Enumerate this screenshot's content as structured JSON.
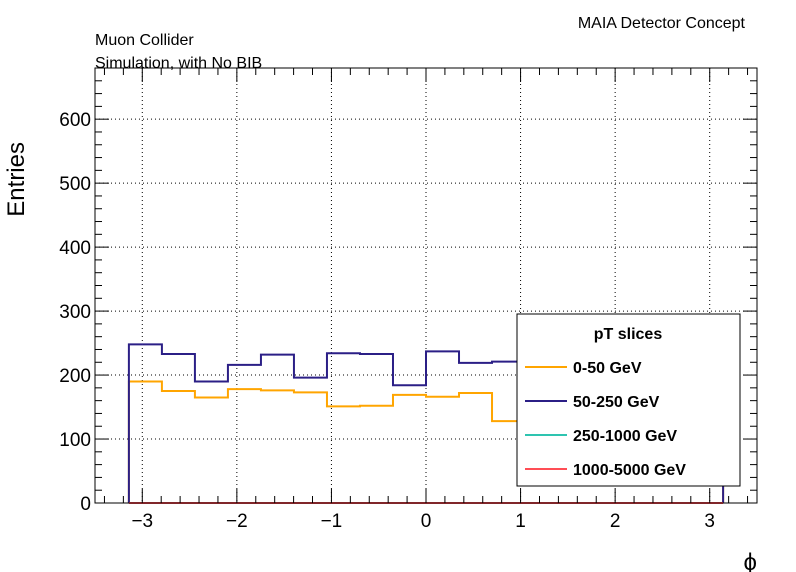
{
  "annotations": {
    "experiment": "MAIA Detector Concept",
    "line1": "Muon Collider",
    "line2": "Simulation, with No BIB"
  },
  "chart_data": {
    "type": "histogram",
    "title": "",
    "xlabel": "ϕ",
    "ylabel": "Entries",
    "xlim": [
      -3.5,
      3.5
    ],
    "ylim": [
      0,
      680
    ],
    "grid": true,
    "xticks": [
      -3,
      -2,
      -1,
      0,
      1,
      2,
      3
    ],
    "xtick_labels": [
      "−3",
      "−2",
      "−1",
      "0",
      "1",
      "2",
      "3"
    ],
    "yticks": [
      0,
      100,
      200,
      300,
      400,
      500,
      600
    ],
    "ytick_labels": [
      "0",
      "100",
      "200",
      "300",
      "400",
      "500",
      "600"
    ],
    "bin_edges": [
      -3.1416,
      -2.7925,
      -2.4435,
      -2.0944,
      -1.7453,
      -1.3963,
      -1.0472,
      -0.6981,
      -0.3491,
      0.0,
      0.3491,
      0.6981,
      1.0472,
      1.3963,
      1.7453,
      2.0944,
      2.4435,
      2.7925,
      3.1416
    ],
    "legend": {
      "title": "pT slices",
      "position": "bottom-right"
    },
    "series": [
      {
        "name": "0-50 GeV",
        "color": "#ffa500",
        "values": [
          190,
          175,
          165,
          178,
          176,
          173,
          151,
          152,
          169,
          166,
          172,
          128,
          128,
          128,
          128,
          128,
          128,
          128
        ]
      },
      {
        "name": "50-250 GeV",
        "color": "#2b1f86",
        "values": [
          248,
          233,
          190,
          216,
          232,
          196,
          234,
          233,
          184,
          237,
          219,
          221,
          221,
          221,
          221,
          221,
          221,
          221
        ]
      },
      {
        "name": "250-1000 GeV",
        "color": "#2ec4b0",
        "values": [
          0,
          0,
          0,
          0,
          0,
          0,
          0,
          0,
          0,
          0,
          0,
          0,
          0,
          0,
          0,
          0,
          0,
          0
        ]
      },
      {
        "name": "1000-5000 GeV",
        "color": "#ff4d55",
        "values": [
          0,
          0,
          0,
          0,
          0,
          0,
          0,
          0,
          0,
          0,
          0,
          0,
          0,
          0,
          0,
          0,
          0,
          0
        ]
      }
    ]
  }
}
